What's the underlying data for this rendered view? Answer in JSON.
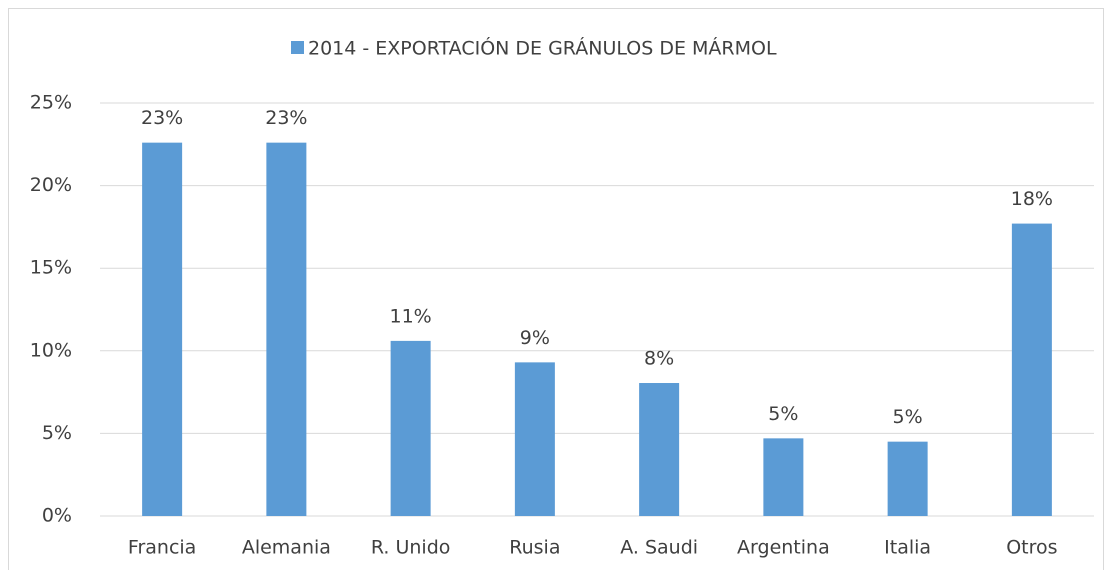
{
  "chart_data": {
    "type": "bar",
    "categories": [
      "Francia",
      "Alemania",
      "R. Unido",
      "Rusia",
      "A. Saudi",
      "Argentina",
      "Italia",
      "Otros"
    ],
    "series": [
      {
        "name": "2014 - EXPORTACIÓN DE GRÁNULOS DE MÁRMOL",
        "color": "#5b9bd5",
        "values": [
          22.6,
          22.6,
          10.6,
          9.3,
          8.05,
          4.7,
          4.5,
          17.7
        ],
        "value_labels": [
          "23%",
          "23%",
          "11%",
          "9%",
          "8%",
          "5%",
          "5%",
          "18%"
        ]
      }
    ],
    "ylim": [
      0,
      25
    ],
    "yticks": [
      {
        "value": 0,
        "label": "0%"
      },
      {
        "value": 5,
        "label": "5%"
      },
      {
        "value": 10,
        "label": "10%"
      },
      {
        "value": 15,
        "label": "15%"
      },
      {
        "value": 20,
        "label": "20%"
      },
      {
        "value": 25,
        "label": "25%"
      }
    ],
    "grid": true,
    "legend": "top"
  }
}
